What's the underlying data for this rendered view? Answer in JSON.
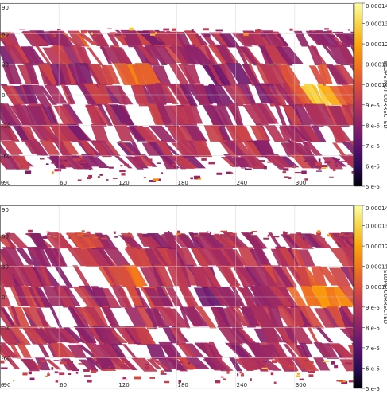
{
  "chart_data": [
    {
      "type": "heatmap",
      "x_ticks": [
        "0",
        "60",
        "120",
        "180",
        "240",
        "300"
      ],
      "x_tick_values": [
        0,
        60,
        120,
        180,
        240,
        300
      ],
      "y_ticks": [
        "90",
        "60",
        "30",
        "0",
        "-30",
        "-60",
        "-90"
      ],
      "y_tick_values": [
        90,
        60,
        30,
        0,
        -30,
        -60,
        -90
      ],
      "xlim": [
        0,
        360
      ],
      "ylim": [
        -90,
        90
      ],
      "grid": true,
      "colorbar": {
        "label": "SLOPE NOT CORRECTED",
        "ticks": [
          "5.e-5",
          "6.e-5",
          "7.e-5",
          "8.e-5",
          "9.e-5",
          "0.00010",
          "0.00011",
          "0.00012",
          "0.00013",
          "0.00014"
        ],
        "tick_values": [
          5e-05,
          6e-05,
          7e-05,
          8e-05,
          9e-05,
          0.0001,
          0.00011,
          0.00012,
          0.00013,
          0.00014
        ],
        "range": [
          5e-05,
          0.00014
        ],
        "colormap": [
          "#000004",
          "#2b0b57",
          "#5c126e",
          "#8a226a",
          "#b63458",
          "#dd513a",
          "#f37819",
          "#fca50a",
          "#f6d746",
          "#fcffa4"
        ]
      },
      "hotspots": [
        {
          "lon": 318,
          "lat": 2,
          "level": 0.85
        },
        {
          "lon": 300,
          "lat": 12,
          "level": 0.55
        },
        {
          "lon": 128,
          "lat": 20,
          "level": 0.6
        },
        {
          "lon": 72,
          "lat": 60,
          "level": 0.55
        },
        {
          "lon": 210,
          "lat": 8,
          "level": 0.3
        }
      ],
      "mean_level": 0.4
    },
    {
      "type": "heatmap",
      "x_ticks": [
        "0",
        "60",
        "120",
        "180",
        "240",
        "300"
      ],
      "x_tick_values": [
        0,
        60,
        120,
        180,
        240,
        300
      ],
      "y_ticks": [
        "90",
        "60",
        "30",
        "0",
        "-30",
        "-60",
        "-90"
      ],
      "y_tick_values": [
        90,
        60,
        30,
        0,
        -30,
        -60,
        -90
      ],
      "xlim": [
        0,
        360
      ],
      "ylim": [
        -90,
        90
      ],
      "grid": true,
      "colorbar": {
        "label": "SLOPE CORRECTED",
        "ticks": [
          "5.e-5",
          "6.e-5",
          "7.e-5",
          "8.e-5",
          "9.e-5",
          "0.00010",
          "0.00011",
          "0.00012",
          "0.00013",
          "0.00014"
        ],
        "tick_values": [
          5e-05,
          6e-05,
          7e-05,
          8e-05,
          9e-05,
          0.0001,
          0.00011,
          0.00012,
          0.00013,
          0.00014
        ],
        "range": [
          5e-05,
          0.00014
        ],
        "colormap": [
          "#000004",
          "#2b0b57",
          "#5c126e",
          "#8a226a",
          "#b63458",
          "#dd513a",
          "#f37819",
          "#fca50a",
          "#f6d746",
          "#fcffa4"
        ]
      },
      "hotspots": [
        {
          "lon": 318,
          "lat": 2,
          "level": 0.8
        },
        {
          "lon": 300,
          "lat": 14,
          "level": 0.5
        },
        {
          "lon": 128,
          "lat": 16,
          "level": 0.6
        },
        {
          "lon": 72,
          "lat": 62,
          "level": 0.55
        },
        {
          "lon": 210,
          "lat": 6,
          "level": 0.3
        }
      ],
      "mean_level": 0.42
    }
  ]
}
